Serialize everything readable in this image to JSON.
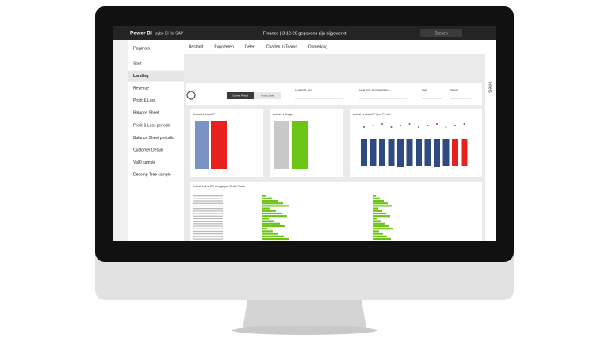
{
  "topbar": {
    "app": "Power BI",
    "workspace": "sybo BI for SAP",
    "status": "Finance  |  3-12-20 gegevens zijn bijgewerkt",
    "search": "Zoeken"
  },
  "toolbar": [
    "Bestand",
    "Exporteren",
    "Delen",
    "Chatten in Teams",
    "Opmerking"
  ],
  "nav": {
    "title": "Pagina's",
    "pages": [
      "Start",
      "Landing",
      "Revenue",
      "Profit & Loss",
      "Balance Sheet",
      "Profit & Loss periodic",
      "Balance Sheet periodic",
      "Customer Details",
      "ValQ sample",
      "Decomp Tree sample"
    ],
    "selected": "Landing"
  },
  "filters_pane": "Filters",
  "report": {
    "buttons": [
      "Current Period",
      "Year to Date"
    ],
    "slicers": [
      "Level 2 P/L Item",
      "Level 3 P/L Item Description",
      "Year",
      "Period"
    ],
    "visuals": [
      "Actual vs Actual PY",
      "Actual vs Budget",
      "Actual vs Actual PY per Period",
      "Actual, Actual PY, Budget per Profit Center"
    ]
  }
}
